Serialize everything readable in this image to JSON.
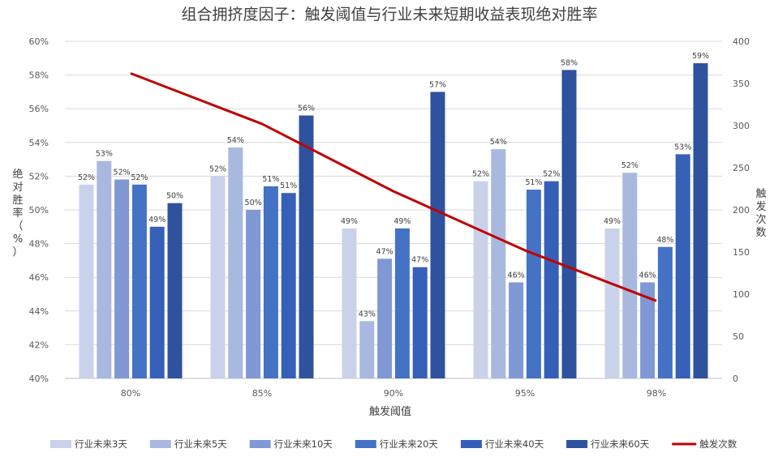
{
  "chart_data": {
    "type": "bar",
    "title": "组合拥挤度因子：触发阈值与行业未来短期收益表现绝对胜率",
    "xlabel": "触发阈值",
    "ylabel": "绝对胜率（%）",
    "y2label": "触发次数",
    "categories": [
      "80%",
      "85%",
      "90%",
      "95%",
      "98%"
    ],
    "ylim": [
      40,
      60
    ],
    "yticks": [
      "40%",
      "42%",
      "44%",
      "46%",
      "48%",
      "50%",
      "52%",
      "54%",
      "56%",
      "58%",
      "60%"
    ],
    "y2lim": [
      0,
      400
    ],
    "y2ticks": [
      "0",
      "50",
      "100",
      "150",
      "200",
      "250",
      "300",
      "350",
      "400"
    ],
    "grid": true,
    "legend_position": "bottom",
    "series": [
      {
        "name": "行业未来3天",
        "color": "#c9d2ea",
        "values": [
          51.5,
          52.0,
          48.9,
          51.7,
          48.9
        ],
        "labels": [
          "52%",
          "52%",
          "49%",
          "52%",
          "49%"
        ]
      },
      {
        "name": "行业未来5天",
        "color": "#a9b8df",
        "values": [
          52.9,
          53.7,
          43.4,
          53.6,
          52.2
        ],
        "labels": [
          "53%",
          "54%",
          "43%",
          "54%",
          "52%"
        ]
      },
      {
        "name": "行业未来10天",
        "color": "#8098d4",
        "values": [
          51.8,
          50.0,
          47.1,
          45.7,
          45.7
        ],
        "labels": [
          "52%",
          "50%",
          "47%",
          "46%",
          "46%"
        ]
      },
      {
        "name": "行业未来20天",
        "color": "#4472c4",
        "values": [
          51.5,
          51.4,
          48.9,
          51.2,
          47.8
        ],
        "labels": [
          "52%",
          "51%",
          "49%",
          "51%",
          "48%"
        ]
      },
      {
        "name": "行业未来40天",
        "color": "#3660b8",
        "values": [
          49.0,
          51.0,
          46.6,
          51.7,
          53.3
        ],
        "labels": [
          "49%",
          "51%",
          "47%",
          "52%",
          "53%"
        ]
      },
      {
        "name": "行业未来60天",
        "color": "#2f529e",
        "values": [
          50.4,
          55.6,
          57.0,
          58.3,
          58.7
        ],
        "labels": [
          "50%",
          "56%",
          "57%",
          "58%",
          "59%"
        ]
      },
      {
        "name": "触发次数",
        "type": "line",
        "axis": "y2",
        "color": "#c00000",
        "values": [
          362,
          302,
          222,
          152,
          92
        ]
      }
    ]
  }
}
